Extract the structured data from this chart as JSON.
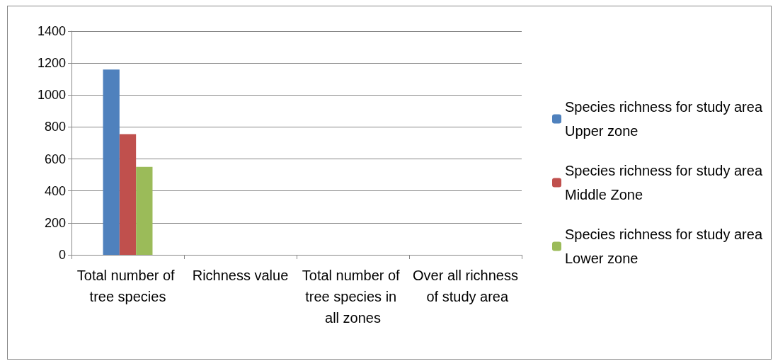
{
  "chart_data": {
    "type": "bar",
    "categories": [
      "Total number of tree species",
      "Richness value",
      "Total number of tree species in all zones",
      "Over all richness of study area"
    ],
    "series": [
      {
        "name": "Species richness for study area Upper zone",
        "color": "#4f81bd",
        "values": [
          1160,
          null,
          null,
          null
        ]
      },
      {
        "name": "Species richness for study area Middle Zone",
        "color": "#c0504d",
        "values": [
          755,
          null,
          null,
          null
        ]
      },
      {
        "name": "Species richness for study area Lower zone",
        "color": "#9bbb59",
        "values": [
          550,
          null,
          null,
          null
        ]
      }
    ],
    "ylim": [
      0,
      1400
    ],
    "yticks": [
      0,
      200,
      400,
      600,
      800,
      1000,
      1200,
      1400
    ],
    "grid": "y",
    "legend": "right"
  }
}
